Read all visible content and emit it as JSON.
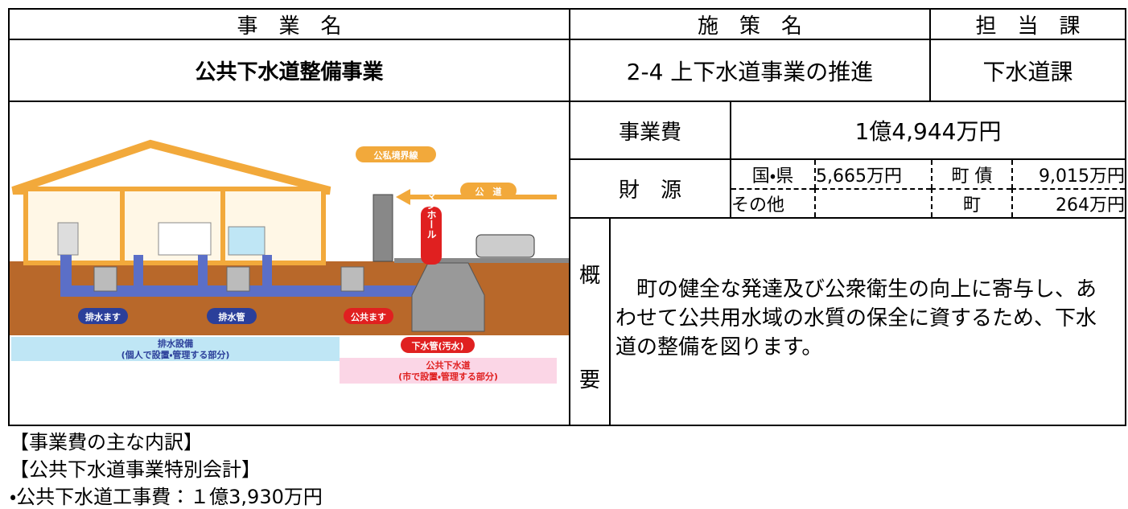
{
  "header": {
    "project_label": "事　業　名",
    "policy_label": "施　策　名",
    "dept_label": "担　当　課"
  },
  "project": {
    "name": "公共下水道整備事業",
    "policy": "2-4 上下水道事業の推進",
    "dept": "下水道課"
  },
  "cost": {
    "label": "事業費",
    "value": "1億4,944万円"
  },
  "funding": {
    "label": "財　源",
    "national_pref": {
      "label": "国・県",
      "value": "5,665万円"
    },
    "town_bond": {
      "label": "町 債",
      "value": "9,015万円"
    },
    "other": {
      "label": "その他"
    },
    "town": {
      "label": "町",
      "value": "264万円"
    }
  },
  "summary": {
    "label_top": "概",
    "label_bottom": "要",
    "text": "　町の健全な発達及び公衆衛生の向上に寄与し、あわせて公共用水域の水質の保全に資するため、下水道の整備を図ります。"
  },
  "illustration": {
    "boundary": "公私境界線",
    "public_road": "公　道",
    "manhole": "マンホール",
    "drain_box": "排水ます",
    "drain_pipe": "排水管",
    "public_box": "公共ます",
    "sewer_pipe": "下水管(汚水)",
    "private_area": {
      "title": "排水設備",
      "note": "(個人で設置・管理する部分)"
    },
    "public_area": {
      "title": "公共下水道",
      "note": "(市で設置・管理する部分)"
    }
  },
  "breakdown": {
    "heading": "【事業費の主な内訳】",
    "account": "【公共下水道事業特別会計】",
    "items": [
      "・公共下水道工事費：１億3,930万円"
    ]
  }
}
